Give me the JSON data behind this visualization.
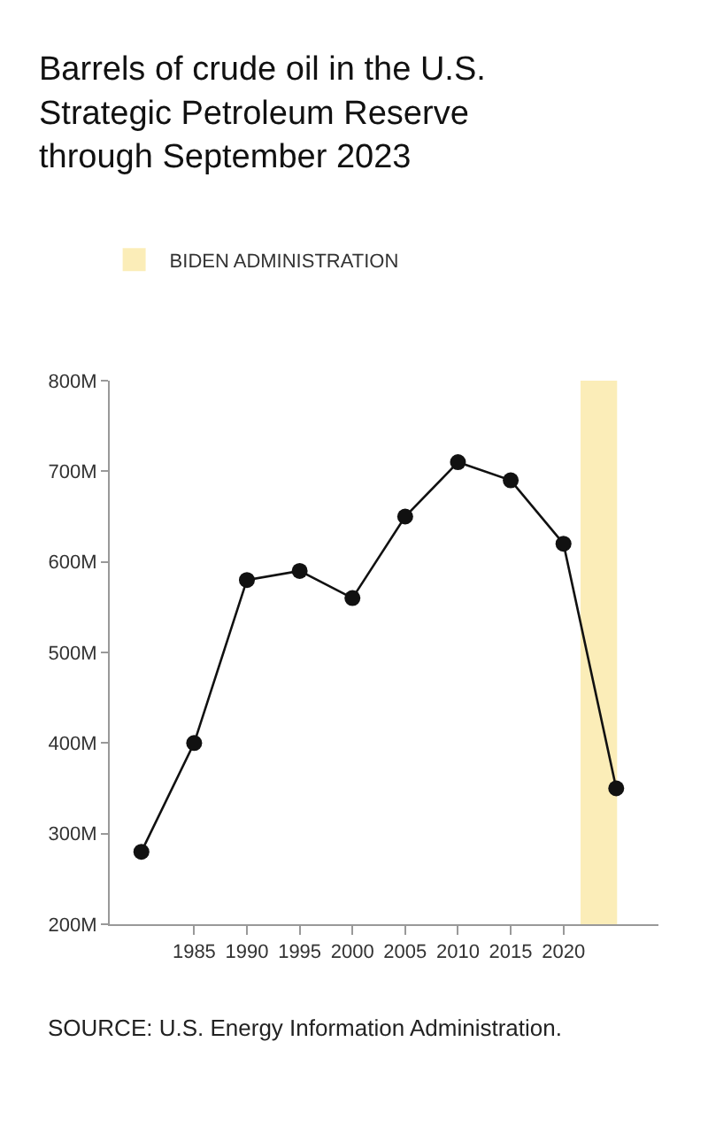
{
  "chart_data": {
    "type": "line",
    "title": "Barrels of crude oil in the U.S. Strategic Petroleum Reserve through September 2023",
    "x": [
      1980,
      1985,
      1990,
      1995,
      2000,
      2005,
      2010,
      2015,
      2020,
      2025
    ],
    "series": [
      {
        "color": "#111111",
        "values": [
          280,
          400,
          580,
          590,
          560,
          650,
          710,
          690,
          620,
          350
        ]
      }
    ],
    "xlim": [
      1977,
      2029
    ],
    "xticks": [
      1985,
      1990,
      1995,
      2000,
      2005,
      2010,
      2015,
      2020
    ],
    "ylim": [
      200,
      800
    ],
    "yticks": [
      {
        "value": 200,
        "label": "200M"
      },
      {
        "value": 300,
        "label": "300M"
      },
      {
        "value": 400,
        "label": "400M"
      },
      {
        "value": 500,
        "label": "500M"
      },
      {
        "value": 600,
        "label": "600M"
      },
      {
        "value": 700,
        "label": "700M"
      },
      {
        "value": 800,
        "label": "800M"
      }
    ],
    "bands": [
      {
        "axis": "x",
        "from": 2021.7,
        "to": 2025,
        "label": "BIDEN ADMINISTRATION",
        "color": "#f5c518"
      }
    ],
    "annotations": [
      "SOURCE: U.S. Energy Information Administration."
    ],
    "marker": "circle",
    "line_style": "solid",
    "grid": false,
    "legend": "top left"
  }
}
